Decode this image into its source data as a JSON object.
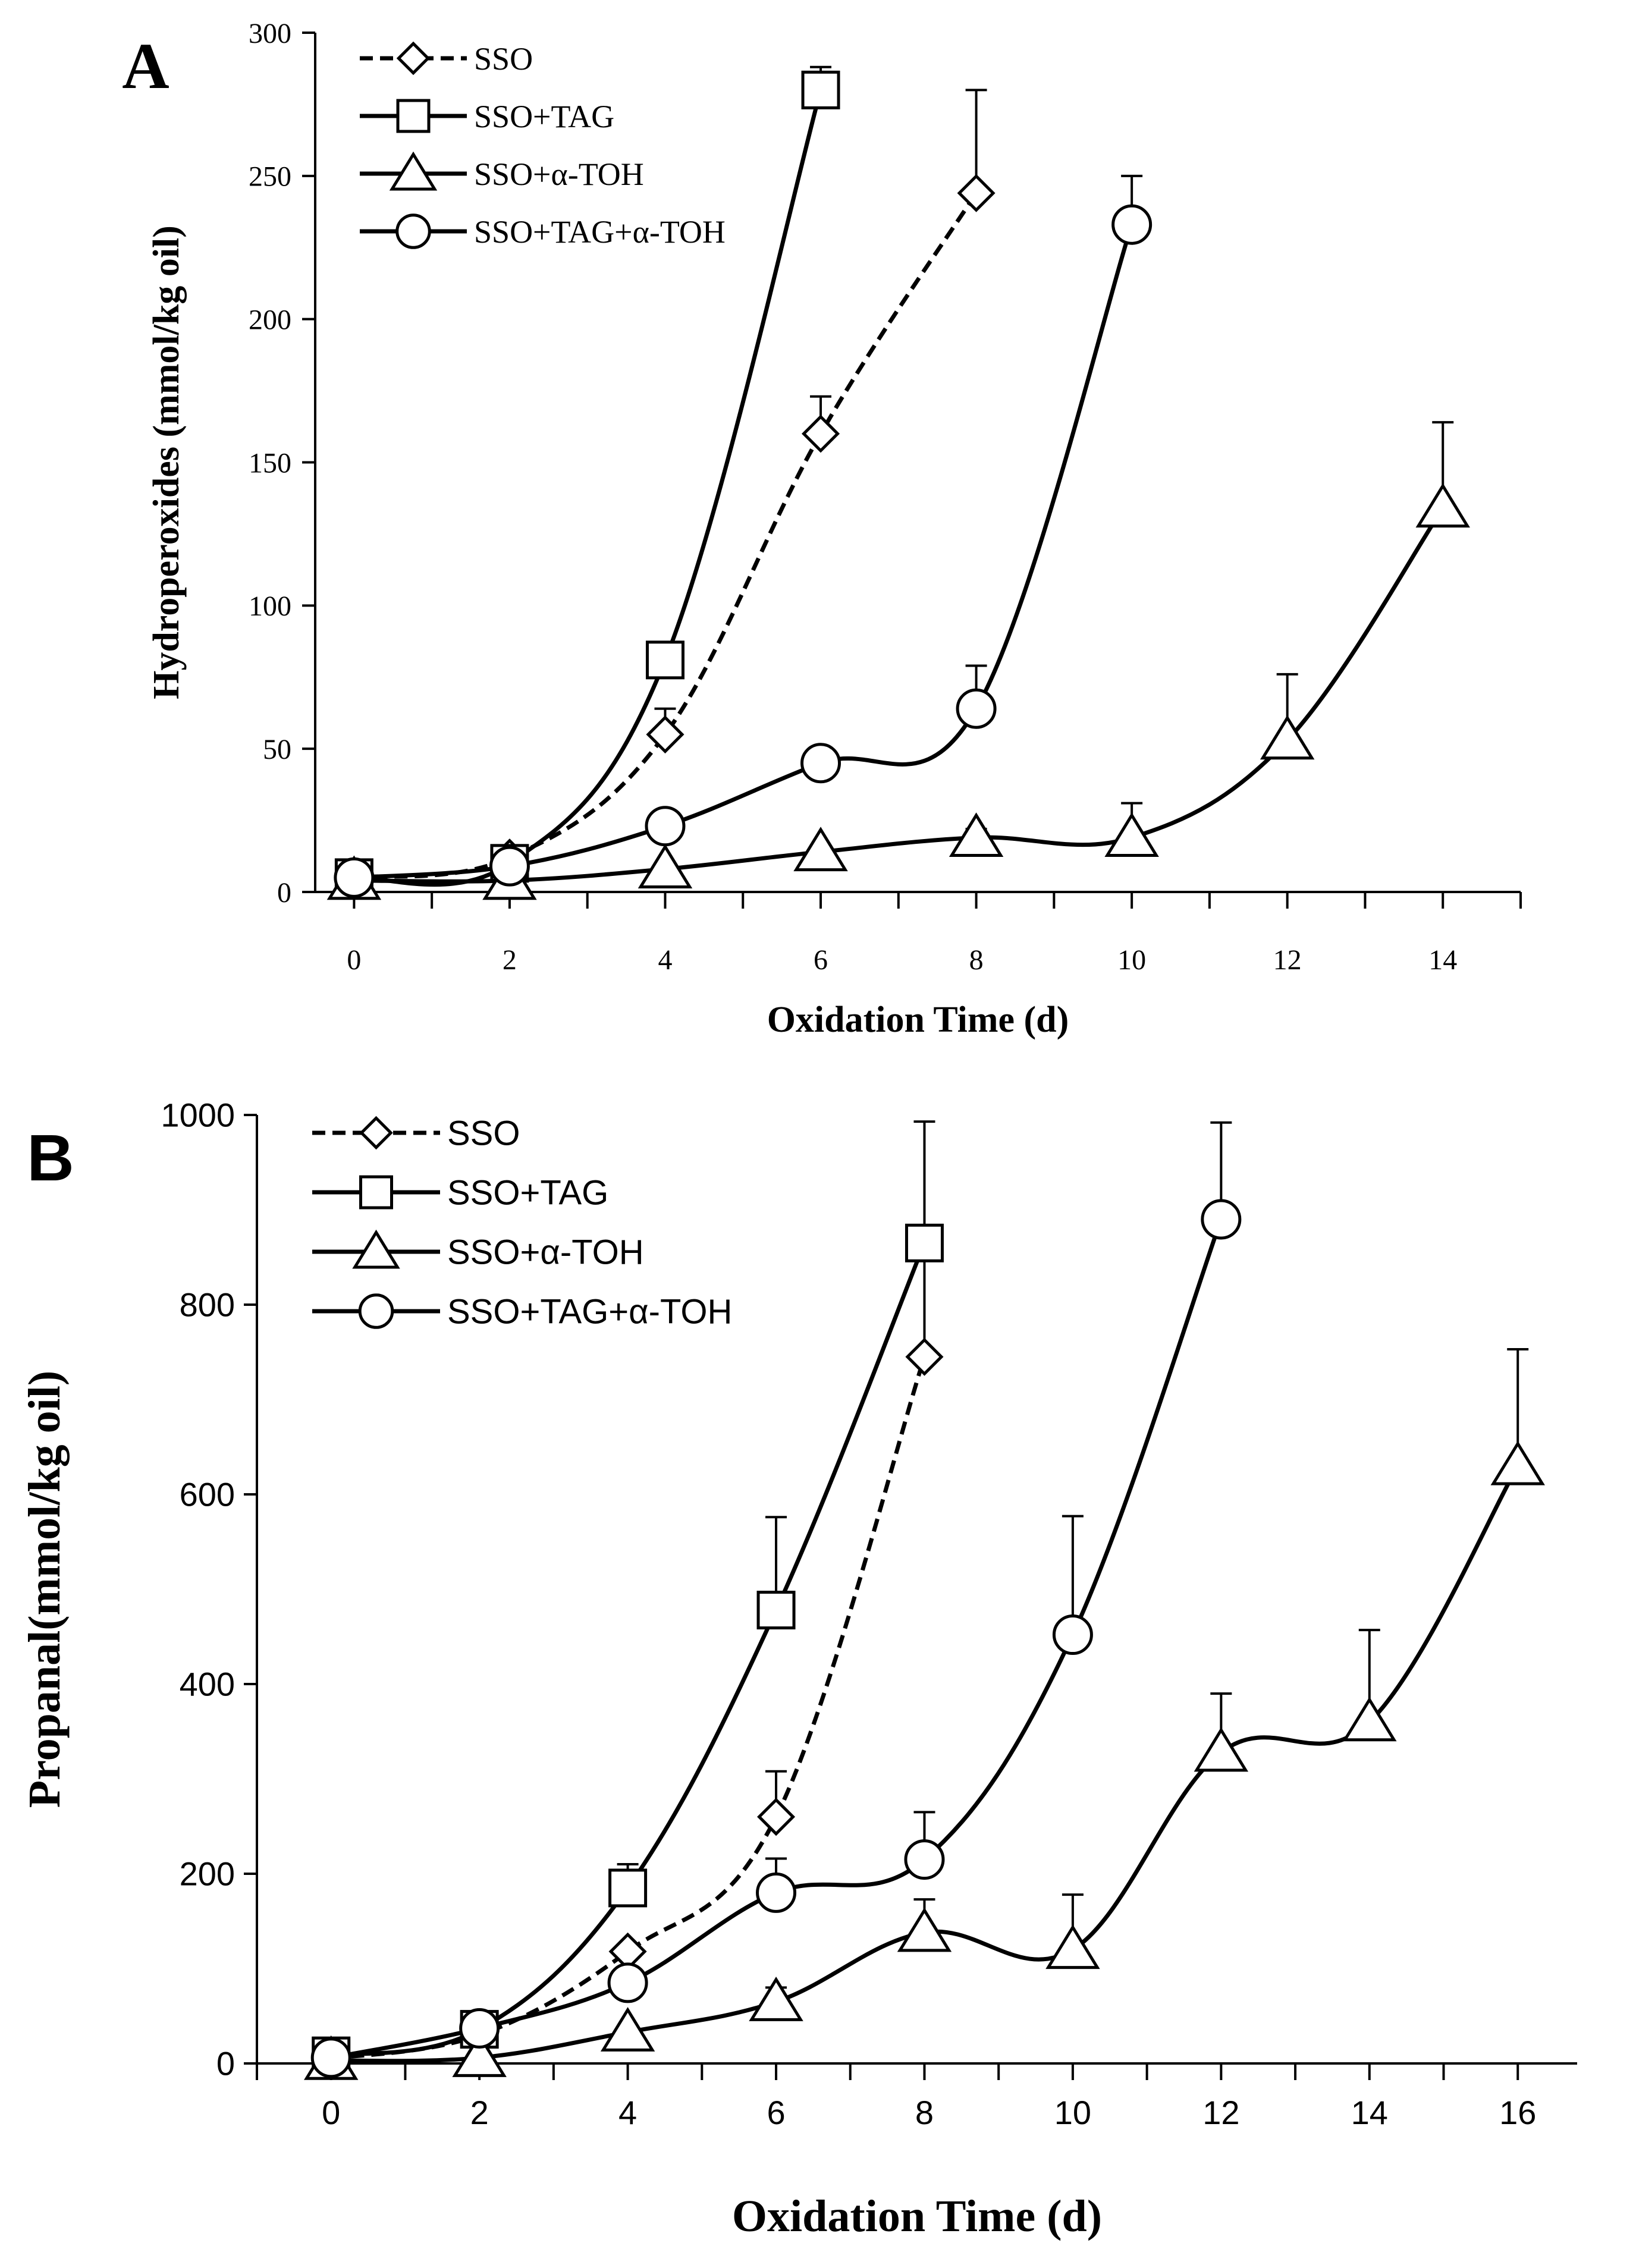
{
  "chart_data": [
    {
      "panel": "A",
      "type": "line",
      "title": "",
      "xlabel": "Oxidation Time (d)",
      "ylabel": "Hydroperoxides (mmol/kg oil)",
      "xlim": [
        -0.5,
        15
      ],
      "ylim": [
        0,
        300
      ],
      "xticks": [
        0,
        2,
        4,
        6,
        8,
        10,
        12,
        14
      ],
      "yticks": [
        0,
        50,
        100,
        150,
        200,
        250,
        300
      ],
      "legend_position": "top-left",
      "series": [
        {
          "name": "SSO",
          "marker": "diamond",
          "dashed": true,
          "x": [
            0,
            2,
            4,
            6,
            8
          ],
          "y": [
            5,
            12,
            55,
            160,
            244
          ],
          "err": [
            0,
            0,
            9,
            13,
            36
          ]
        },
        {
          "name": "SSO+TAG",
          "marker": "square",
          "dashed": false,
          "x": [
            0,
            2,
            4,
            6
          ],
          "y": [
            5,
            10,
            81,
            280
          ],
          "err": [
            0,
            0,
            6,
            8
          ]
        },
        {
          "name": "SSO+α-TOH",
          "marker": "triangle",
          "dashed": false,
          "x": [
            0,
            2,
            4,
            6,
            8,
            10,
            12,
            14
          ],
          "y": [
            4,
            4,
            8,
            14,
            19,
            19,
            53,
            134
          ],
          "err": [
            0,
            0,
            0,
            0,
            3,
            12,
            23,
            30
          ]
        },
        {
          "name": "SSO+TAG+α-TOH",
          "marker": "circle",
          "dashed": false,
          "x": [
            0,
            2,
            4,
            6,
            8,
            10
          ],
          "y": [
            5,
            9,
            23,
            45,
            64,
            233
          ],
          "err": [
            0,
            0,
            0,
            4,
            15,
            17
          ]
        }
      ]
    },
    {
      "panel": "B",
      "type": "line",
      "title": "",
      "xlabel": "Oxidation Time (d)",
      "ylabel": "Propanal(mmol/kg oil)",
      "xlim": [
        -1,
        16.8
      ],
      "ylim": [
        0,
        1000
      ],
      "xticks": [
        0,
        2,
        4,
        6,
        8,
        10,
        12,
        14,
        16
      ],
      "yticks": [
        0,
        200,
        400,
        600,
        800,
        1000
      ],
      "legend_position": "top-left",
      "series": [
        {
          "name": "SSO",
          "marker": "diamond",
          "dashed": true,
          "x": [
            0,
            2,
            4,
            6,
            8
          ],
          "y": [
            5,
            30,
            118,
            260,
            745
          ],
          "err": [
            0,
            0,
            0,
            48,
            133
          ]
        },
        {
          "name": "SSO+TAG",
          "marker": "square",
          "dashed": false,
          "x": [
            0,
            2,
            4,
            6,
            8
          ],
          "y": [
            8,
            36,
            185,
            478,
            865
          ],
          "err": [
            0,
            0,
            25,
            98,
            128
          ]
        },
        {
          "name": "SSO+α-TOH",
          "marker": "triangle",
          "dashed": false,
          "x": [
            0,
            2,
            4,
            6,
            8,
            10,
            12,
            14,
            16
          ],
          "y": [
            3,
            6,
            33,
            65,
            138,
            120,
            328,
            360,
            630
          ],
          "err": [
            0,
            0,
            0,
            15,
            35,
            58,
            62,
            97,
            123
          ]
        },
        {
          "name": "SSO+TAG+α-TOH",
          "marker": "circle",
          "dashed": false,
          "x": [
            0,
            2,
            4,
            6,
            8,
            10,
            12
          ],
          "y": [
            6,
            37,
            85,
            180,
            215,
            452,
            890
          ],
          "err": [
            0,
            0,
            0,
            36,
            50,
            125,
            102
          ]
        }
      ]
    }
  ]
}
